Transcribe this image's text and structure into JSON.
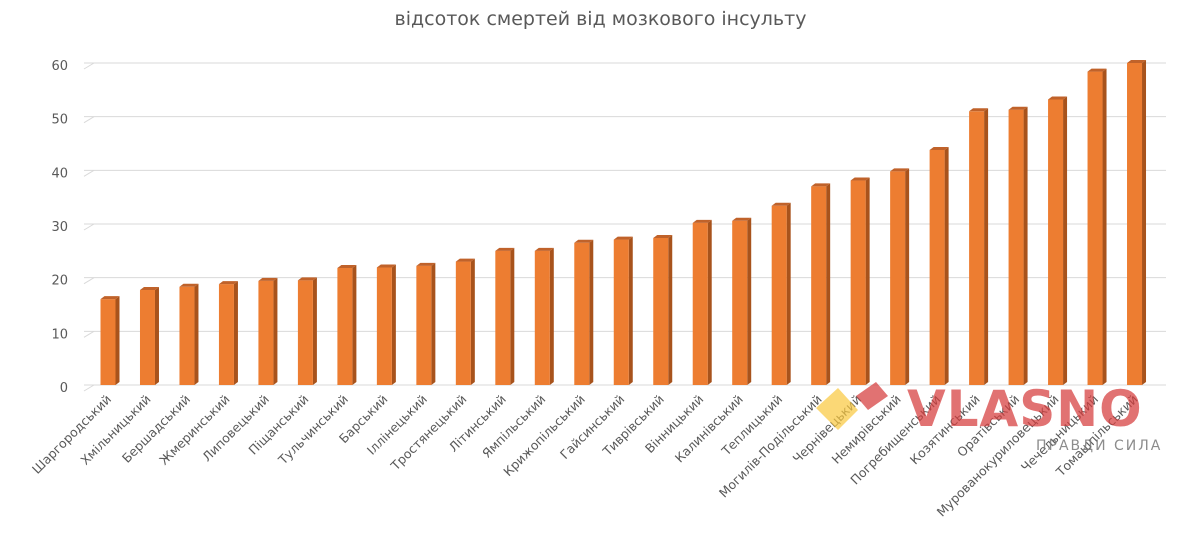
{
  "chart_data": {
    "type": "bar",
    "title": "відсоток смертей від мозкового інсульту",
    "xlabel": "",
    "ylabel": "",
    "ylim": [
      0,
      60
    ],
    "yticks": [
      "0",
      "10",
      "20",
      "30",
      "40",
      "50",
      "60"
    ],
    "grid": true,
    "bar_color": "#ED7D31",
    "bar_side_color": "#A8531C",
    "categories": [
      "Шаргородський",
      "Хмільницький",
      "Бершадський",
      "Жмеринський",
      "Липовецький",
      "Піщанський",
      "Тульчинський",
      "Барський",
      "Іллінецький",
      "Тростянецький",
      "Літинський",
      "Ямпільський",
      "Крижопільський",
      "Гайсинський",
      "Тиврівський",
      "Вінницький",
      "Калинівський",
      "Теплицький",
      "Могилів-Подільський",
      "Чернівецький",
      "Немирівський",
      "Погребищенський",
      "Козятинський",
      "Оратівський",
      "Мурованокуриловецький",
      "Чечельницький",
      "Томашпільський"
    ],
    "values": [
      16,
      17.7,
      18.3,
      18.8,
      19.4,
      19.5,
      21.8,
      21.9,
      22.2,
      23,
      25,
      25,
      26.5,
      27.1,
      27.4,
      30.2,
      30.6,
      33.4,
      37,
      38.1,
      39.8,
      43.8,
      51,
      51.3,
      53.2,
      58.4,
      60
    ]
  },
  "watermark": {
    "brand": "VLASNO",
    "tagline": "ПРАВДИ СИЛА",
    "logo_icon": "vlasno-logo-icon"
  }
}
